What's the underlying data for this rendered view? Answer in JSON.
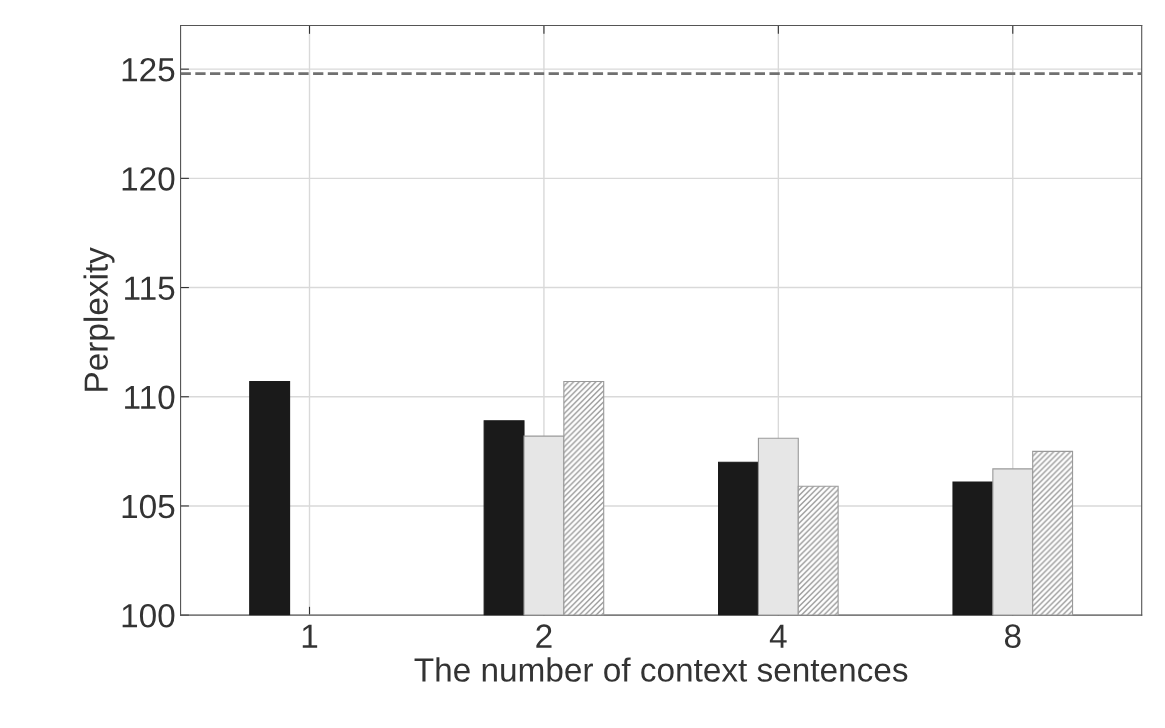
{
  "chart_data": {
    "type": "bar",
    "xlabel": "The number of context sentences",
    "ylabel": "Perplexity",
    "categories": [
      "1",
      "2",
      "4",
      "8"
    ],
    "series": [
      {
        "color": "#1a1a1a",
        "values": [
          110.7,
          108.9,
          107.0,
          106.1
        ]
      },
      {
        "color": "#e6e6e6",
        "values": [
          null,
          108.2,
          108.1,
          106.7
        ]
      },
      {
        "color": "#9a9a9a",
        "values": [
          null,
          110.7,
          105.9,
          107.5
        ]
      }
    ],
    "ylim": [
      100,
      127
    ],
    "yticks": [
      100,
      105,
      110,
      115,
      120,
      125
    ],
    "grid": true,
    "legend": false,
    "ref_lines": [
      {
        "axis": "y",
        "value": 124.8,
        "color": "#707070",
        "line_style": "dashed"
      }
    ]
  }
}
